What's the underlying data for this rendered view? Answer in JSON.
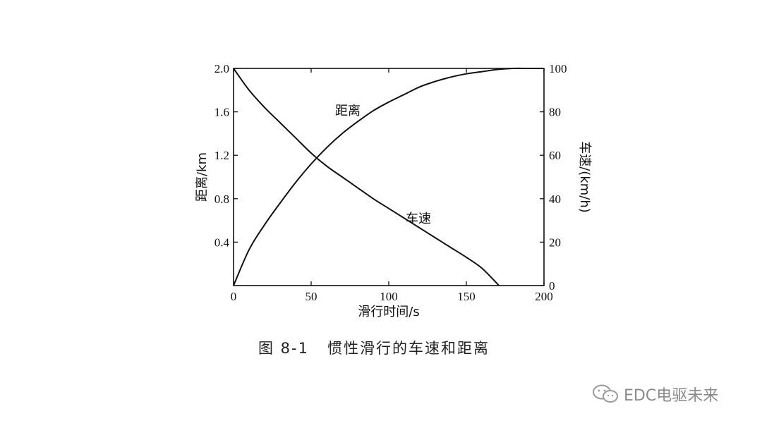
{
  "chart_data": {
    "type": "line",
    "title": "",
    "xlabel": "滑行时间/s",
    "ylabel_left": "距离/km",
    "ylabel_right": "车速/(km/h)",
    "xlim": [
      0,
      200
    ],
    "ylim_left": [
      0,
      2.0
    ],
    "ylim_right": [
      0,
      100
    ],
    "x_ticks": [
      "0",
      "50",
      "100",
      "150",
      "200"
    ],
    "y_left_ticks": [
      "0.4",
      "0.8",
      "1.2",
      "1.6",
      "2.0"
    ],
    "y_right_ticks": [
      "0",
      "20",
      "40",
      "60",
      "80",
      "100"
    ],
    "grid": false,
    "series": [
      {
        "name": "距离",
        "axis": "left",
        "x": [
          0,
          10,
          20,
          30,
          40,
          50,
          60,
          70,
          80,
          90,
          100,
          110,
          120,
          130,
          140,
          150,
          160,
          170,
          180,
          190,
          200
        ],
        "values": [
          0,
          0.33,
          0.56,
          0.76,
          0.95,
          1.12,
          1.27,
          1.4,
          1.51,
          1.61,
          1.69,
          1.76,
          1.83,
          1.88,
          1.92,
          1.95,
          1.97,
          1.99,
          2.0,
          2.0,
          2.0
        ]
      },
      {
        "name": "车速",
        "axis": "right",
        "x": [
          0,
          10,
          20,
          30,
          40,
          50,
          60,
          70,
          80,
          90,
          100,
          110,
          120,
          130,
          140,
          150,
          160,
          171
        ],
        "values": [
          100,
          90,
          82,
          75,
          68,
          61,
          55,
          50,
          45,
          40,
          35.5,
          31,
          26.5,
          22,
          17.5,
          13,
          8,
          0
        ]
      }
    ]
  },
  "caption": "图 8-1   惯性滑行的车速和距离",
  "watermark": {
    "text": "EDC电驱未来",
    "icon": "wechat-icon"
  }
}
